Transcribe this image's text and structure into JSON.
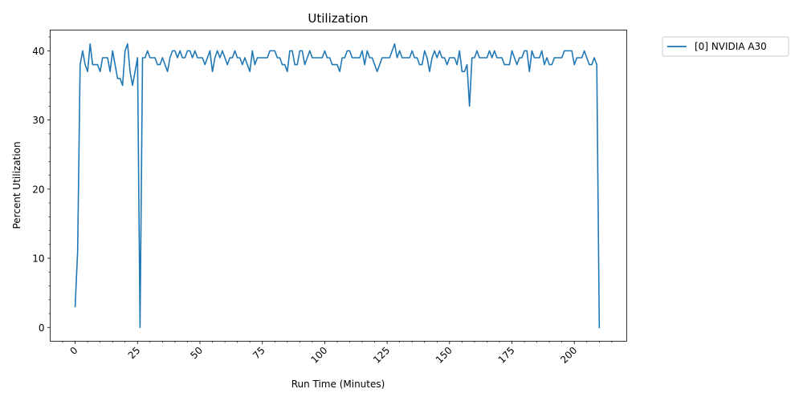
{
  "chart_data": {
    "type": "line",
    "title": "Utilization",
    "xlabel": "Run Time (Minutes)",
    "ylabel": "Percent Utilization",
    "xlim": [
      -10,
      221
    ],
    "ylim": [
      -2,
      43
    ],
    "xticks": [
      0,
      25,
      50,
      75,
      100,
      125,
      150,
      175,
      200
    ],
    "yticks": [
      0,
      10,
      20,
      30,
      40
    ],
    "legend_position": "outside-top-right",
    "grid": false,
    "series": [
      {
        "name": "[0] NVIDIA A30",
        "color": "#1f77b4",
        "x": [
          0,
          1,
          2,
          3,
          4,
          5,
          6,
          7,
          8,
          9,
          10,
          11,
          12,
          13,
          14,
          15,
          16,
          17,
          18,
          19,
          20,
          21,
          22,
          23,
          24,
          25,
          26,
          27,
          28,
          29,
          30,
          31,
          32,
          33,
          34,
          35,
          36,
          37,
          38,
          39,
          40,
          41,
          42,
          43,
          44,
          45,
          46,
          47,
          48,
          49,
          50,
          51,
          52,
          53,
          54,
          55,
          56,
          57,
          58,
          59,
          60,
          61,
          62,
          63,
          64,
          65,
          66,
          67,
          68,
          69,
          70,
          71,
          72,
          73,
          74,
          75,
          76,
          77,
          78,
          79,
          80,
          81,
          82,
          83,
          84,
          85,
          86,
          87,
          88,
          89,
          90,
          91,
          92,
          93,
          94,
          95,
          96,
          97,
          98,
          99,
          100,
          101,
          102,
          103,
          104,
          105,
          106,
          107,
          108,
          109,
          110,
          111,
          112,
          113,
          114,
          115,
          116,
          117,
          118,
          119,
          120,
          121,
          122,
          123,
          124,
          125,
          126,
          127,
          128,
          129,
          130,
          131,
          132,
          133,
          134,
          135,
          136,
          137,
          138,
          139,
          140,
          141,
          142,
          143,
          144,
          145,
          146,
          147,
          148,
          149,
          150,
          151,
          152,
          153,
          154,
          155,
          156,
          157,
          158,
          159,
          160,
          161,
          162,
          163,
          164,
          165,
          166,
          167,
          168,
          169,
          170,
          171,
          172,
          173,
          174,
          175,
          176,
          177,
          178,
          179,
          180,
          181,
          182,
          183,
          184,
          185,
          186,
          187,
          188,
          189,
          190,
          191,
          192,
          193,
          194,
          195,
          196,
          197,
          198,
          199,
          200,
          201,
          202,
          203,
          204,
          205,
          206,
          207,
          208,
          209,
          210
        ],
        "values": [
          3,
          11,
          38,
          40,
          38,
          37,
          41,
          38,
          38,
          38,
          37,
          39,
          39,
          39,
          37,
          40,
          38,
          36,
          36,
          35,
          40,
          41,
          37,
          35,
          37,
          39,
          0,
          39,
          39,
          40,
          39,
          39,
          39,
          38,
          38,
          39,
          38,
          37,
          39,
          40,
          40,
          39,
          40,
          39,
          39,
          40,
          40,
          39,
          40,
          39,
          39,
          39,
          38,
          39,
          40,
          37,
          39,
          40,
          39,
          40,
          39,
          38,
          39,
          39,
          40,
          39,
          39,
          38,
          39,
          38,
          37,
          40,
          38,
          39,
          39,
          39,
          39,
          39,
          40,
          40,
          40,
          39,
          39,
          38,
          38,
          37,
          40,
          40,
          38,
          38,
          40,
          40,
          38,
          39,
          40,
          39,
          39,
          39,
          39,
          39,
          40,
          39,
          39,
          38,
          38,
          38,
          37,
          39,
          39,
          40,
          40,
          39,
          39,
          39,
          39,
          40,
          38,
          40,
          39,
          39,
          38,
          37,
          38,
          39,
          39,
          39,
          39,
          40,
          41,
          39,
          40,
          39,
          39,
          39,
          39,
          40,
          39,
          39,
          38,
          38,
          40,
          39,
          37,
          39,
          40,
          39,
          40,
          39,
          39,
          38,
          39,
          39,
          39,
          38,
          40,
          37,
          37,
          38,
          32,
          39,
          39,
          40,
          39,
          39,
          39,
          39,
          40,
          39,
          40,
          39,
          39,
          39,
          38,
          38,
          38,
          40,
          39,
          38,
          39,
          39,
          40,
          40,
          37,
          40,
          39,
          39,
          39,
          40,
          38,
          39,
          38,
          38,
          39,
          39,
          39,
          39,
          40,
          40,
          40,
          40,
          38,
          39,
          39,
          39,
          40,
          39,
          38,
          38,
          39,
          38,
          0
        ]
      }
    ]
  }
}
